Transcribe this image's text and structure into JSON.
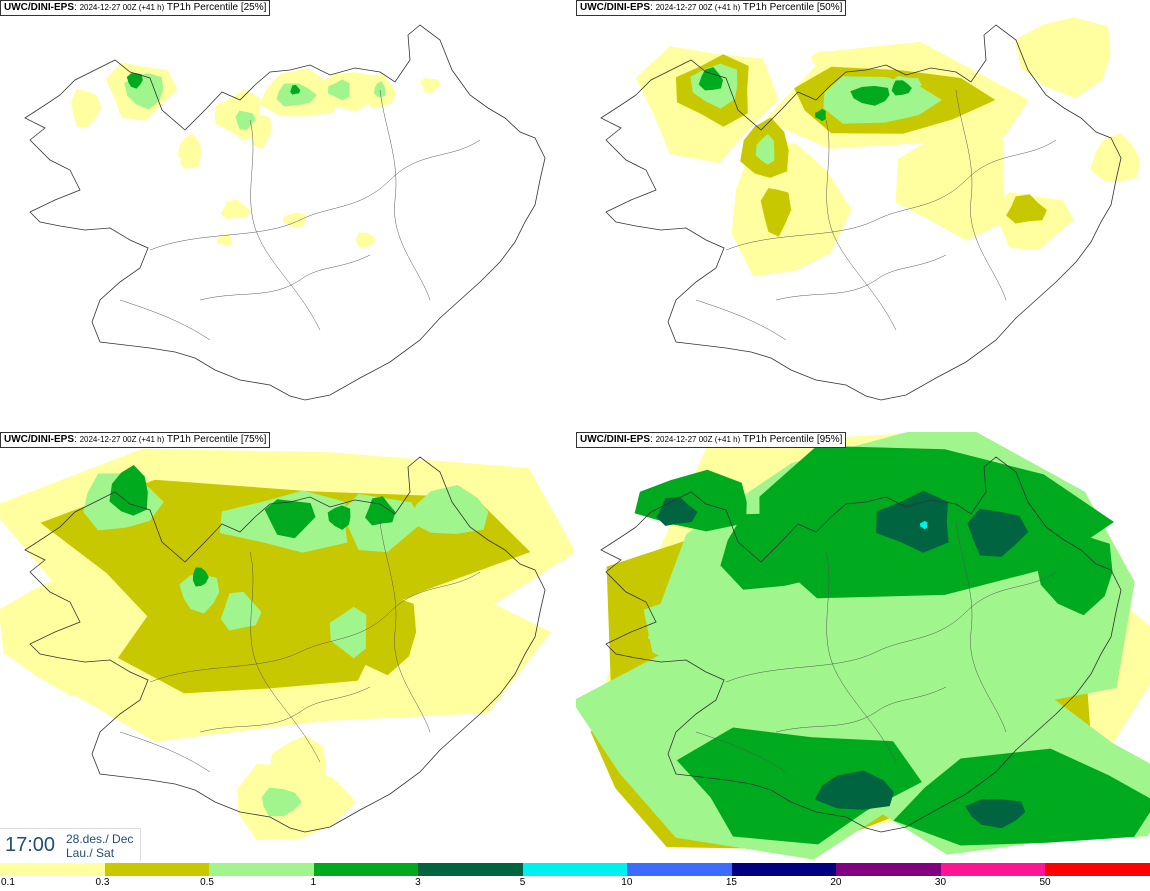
{
  "panels": [
    {
      "source": "UWC/DINI-EPS",
      "run": "2024-12-27 00Z (+41 h)",
      "label": "TP1h Percentile [25%]",
      "percentile": 25
    },
    {
      "source": "UWC/DINI-EPS",
      "run": "2024-12-27 00Z (+41 h)",
      "label": "TP1h Percentile [50%]",
      "percentile": 50
    },
    {
      "source": "UWC/DINI-EPS",
      "run": "2024-12-27 00Z (+41 h)",
      "label": "TP1h Percentile [75%]",
      "percentile": 75
    },
    {
      "source": "UWC/DINI-EPS",
      "run": "2024-12-27 00Z (+41 h)",
      "label": "TP1h Percentile [95%]",
      "percentile": 95
    }
  ],
  "valid_time": {
    "time": "17:00",
    "date": "28.des./ Dec",
    "day": "Lau./ Sat"
  },
  "legend": {
    "ticks": [
      "0.1",
      "0.3",
      "0.5",
      "1",
      "3",
      "5",
      "10",
      "15",
      "20",
      "30",
      "50"
    ],
    "colors": [
      "#ffff9f",
      "#c8c800",
      "#a0f58c",
      "#00aa1e",
      "#006440",
      "#00f0f0",
      "#3c6cff",
      "#000080",
      "#800080",
      "#ff1493",
      "#ff0000"
    ]
  }
}
